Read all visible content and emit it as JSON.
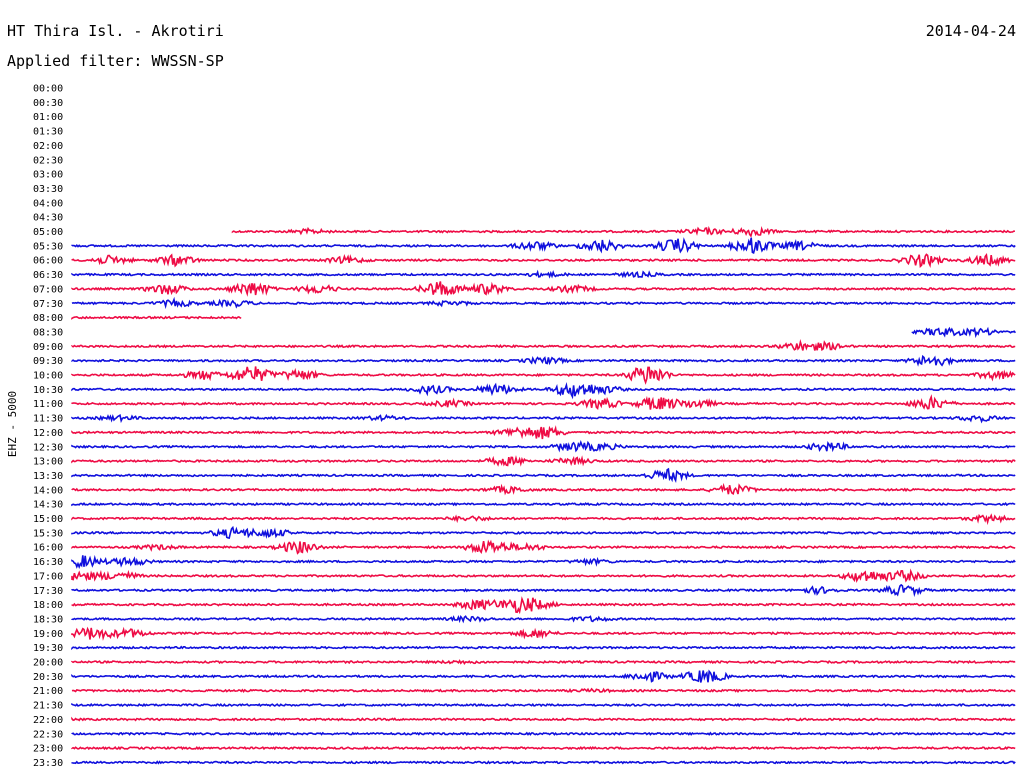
{
  "header": {
    "station": "HT Thira Isl. - Akrotiri",
    "date": "2014-04-24",
    "filter": "Applied filter: WWSSN-SP"
  },
  "chart_data": {
    "type": "line",
    "title": "HT Thira Isl. - Akrotiri",
    "subtitle": "Applied filter: WWSSN-SP",
    "ylabel": "EHZ - 5000",
    "xlabel": "",
    "ticks": [
      "00:00",
      "00:30",
      "01:00",
      "01:30",
      "02:00",
      "02:30",
      "03:00",
      "03:30",
      "04:00",
      "04:30",
      "05:00",
      "05:30",
      "06:00",
      "06:30",
      "07:00",
      "07:30",
      "08:00",
      "08:30",
      "09:00",
      "09:30",
      "10:00",
      "10:30",
      "11:00",
      "11:30",
      "12:00",
      "12:30",
      "13:00",
      "13:30",
      "14:00",
      "14:30",
      "15:00",
      "15:30",
      "16:00",
      "16:30",
      "17:00",
      "17:30",
      "18:00",
      "18:30",
      "19:00",
      "19:30",
      "20:00",
      "20:30",
      "21:00",
      "21:30",
      "22:00",
      "22:30",
      "23:00",
      "23:30"
    ],
    "trace_colors": [
      "#ee0c45",
      "#1010dd"
    ],
    "traces": [
      {
        "start": 0.17,
        "end": 1.0,
        "events": [
          [
            0.67,
            3
          ],
          [
            0.72,
            4
          ],
          [
            0.25,
            2
          ]
        ]
      },
      {
        "start": 0.0,
        "end": 1.0,
        "events": [
          [
            0.49,
            4
          ],
          [
            0.56,
            6
          ],
          [
            0.64,
            7
          ],
          [
            0.72,
            8
          ],
          [
            0.77,
            4
          ]
        ]
      },
      {
        "start": 0.0,
        "end": 1.0,
        "events": [
          [
            0.04,
            4
          ],
          [
            0.11,
            5
          ],
          [
            0.29,
            3
          ],
          [
            0.9,
            6
          ],
          [
            0.97,
            5
          ]
        ]
      },
      {
        "start": 0.0,
        "end": 1.0,
        "events": [
          [
            0.5,
            2
          ],
          [
            0.6,
            2
          ]
        ]
      },
      {
        "start": 0.0,
        "end": 1.0,
        "events": [
          [
            0.1,
            5
          ],
          [
            0.19,
            7
          ],
          [
            0.26,
            4
          ],
          [
            0.39,
            8
          ],
          [
            0.44,
            5
          ],
          [
            0.53,
            3
          ]
        ]
      },
      {
        "start": 0.0,
        "end": 1.0,
        "events": [
          [
            0.11,
            3
          ],
          [
            0.17,
            3
          ],
          [
            0.4,
            2
          ]
        ]
      },
      {
        "start": 0.0,
        "end": 0.18,
        "events": []
      },
      {
        "start": 0.89,
        "end": 1.0,
        "events": [
          [
            0.92,
            4
          ],
          [
            0.96,
            3
          ]
        ]
      },
      {
        "start": 0.0,
        "end": 1.0,
        "events": [
          [
            0.77,
            4
          ],
          [
            0.8,
            3
          ]
        ]
      },
      {
        "start": 0.0,
        "end": 1.0,
        "events": [
          [
            0.5,
            3
          ],
          [
            0.91,
            6
          ]
        ]
      },
      {
        "start": 0.0,
        "end": 1.0,
        "events": [
          [
            0.14,
            4
          ],
          [
            0.19,
            9
          ],
          [
            0.24,
            5
          ],
          [
            0.61,
            10
          ],
          [
            0.98,
            4
          ]
        ]
      },
      {
        "start": 0.0,
        "end": 1.0,
        "events": [
          [
            0.38,
            4
          ],
          [
            0.45,
            5
          ],
          [
            0.53,
            7
          ],
          [
            0.56,
            4
          ]
        ]
      },
      {
        "start": 0.0,
        "end": 1.0,
        "events": [
          [
            0.4,
            3
          ],
          [
            0.56,
            5
          ],
          [
            0.62,
            7
          ],
          [
            0.66,
            4
          ],
          [
            0.91,
            6
          ]
        ]
      },
      {
        "start": 0.0,
        "end": 1.0,
        "events": [
          [
            0.05,
            2
          ],
          [
            0.33,
            2
          ],
          [
            0.96,
            3
          ]
        ]
      },
      {
        "start": 0.0,
        "end": 1.0,
        "events": [
          [
            0.47,
            4
          ],
          [
            0.5,
            6
          ]
        ]
      },
      {
        "start": 0.0,
        "end": 1.0,
        "events": [
          [
            0.53,
            4
          ],
          [
            0.56,
            3
          ],
          [
            0.8,
            4
          ]
        ]
      },
      {
        "start": 0.0,
        "end": 1.0,
        "events": [
          [
            0.46,
            4
          ],
          [
            0.53,
            3
          ]
        ]
      },
      {
        "start": 0.0,
        "end": 1.0,
        "events": [
          [
            0.63,
            6
          ]
        ]
      },
      {
        "start": 0.0,
        "end": 1.0,
        "events": [
          [
            0.46,
            3
          ],
          [
            0.7,
            5
          ]
        ]
      },
      {
        "start": 0.0,
        "end": 1.0,
        "events": []
      },
      {
        "start": 0.0,
        "end": 1.0,
        "events": [
          [
            0.42,
            2
          ],
          [
            0.97,
            3
          ]
        ]
      },
      {
        "start": 0.0,
        "end": 1.0,
        "events": [
          [
            0.17,
            5
          ],
          [
            0.21,
            4
          ]
        ]
      },
      {
        "start": 0.0,
        "end": 1.0,
        "events": [
          [
            0.09,
            2
          ],
          [
            0.24,
            6
          ],
          [
            0.44,
            7
          ],
          [
            0.48,
            3
          ]
        ]
      },
      {
        "start": 0.0,
        "end": 1.0,
        "events": [
          [
            0.01,
            6
          ],
          [
            0.06,
            4
          ],
          [
            0.55,
            2
          ]
        ]
      },
      {
        "start": 0.0,
        "end": 1.0,
        "events": [
          [
            0.01,
            4
          ],
          [
            0.05,
            4
          ],
          [
            0.84,
            6
          ],
          [
            0.88,
            5
          ]
        ]
      },
      {
        "start": 0.0,
        "end": 1.0,
        "events": [
          [
            0.79,
            3
          ],
          [
            0.88,
            5
          ]
        ]
      },
      {
        "start": 0.0,
        "end": 1.0,
        "events": [
          [
            0.43,
            5
          ],
          [
            0.47,
            6
          ],
          [
            0.49,
            4
          ]
        ]
      },
      {
        "start": 0.0,
        "end": 1.0,
        "events": [
          [
            0.42,
            2
          ],
          [
            0.55,
            2
          ]
        ]
      },
      {
        "start": 0.0,
        "end": 1.0,
        "events": [
          [
            0.02,
            6
          ],
          [
            0.06,
            4
          ],
          [
            0.49,
            4
          ]
        ]
      },
      {
        "start": 0.0,
        "end": 1.0,
        "events": []
      },
      {
        "start": 0.0,
        "end": 1.0,
        "events": [
          [
            0.41,
            1
          ]
        ]
      },
      {
        "start": 0.0,
        "end": 1.0,
        "events": [
          [
            0.61,
            5
          ],
          [
            0.67,
            7
          ]
        ]
      },
      {
        "start": 0.0,
        "end": 1.0,
        "events": [
          [
            0.55,
            1
          ]
        ]
      },
      {
        "start": 0.0,
        "end": 1.0,
        "events": []
      },
      {
        "start": 0.0,
        "end": 1.0,
        "events": []
      },
      {
        "start": 0.0,
        "end": 1.0,
        "events": []
      },
      {
        "start": 0.0,
        "end": 1.0,
        "events": []
      },
      {
        "start": 0.0,
        "end": 1.0,
        "events": []
      }
    ]
  }
}
